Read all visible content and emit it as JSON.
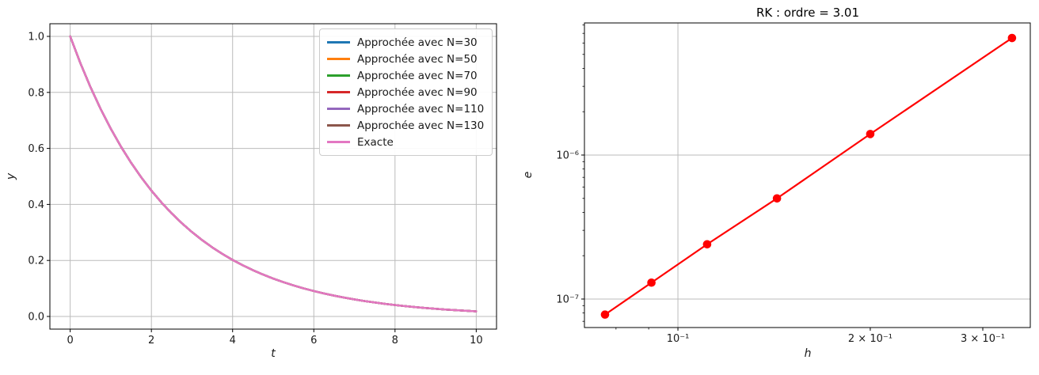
{
  "chart_data": [
    {
      "id": "solution-plot",
      "type": "line",
      "title": "",
      "xlabel": "t",
      "ylabel": "y",
      "xlim": [
        -0.5,
        10.5
      ],
      "ylim": [
        -0.0452,
        1.0452
      ],
      "grid": true,
      "legend_position": "upper right",
      "xticks": [
        {
          "v": 0,
          "label": "0",
          "grid": true
        },
        {
          "v": 2,
          "label": "2",
          "grid": true
        },
        {
          "v": 4,
          "label": "4",
          "grid": true
        },
        {
          "v": 6,
          "label": "6",
          "grid": true
        },
        {
          "v": 8,
          "label": "8",
          "grid": true
        },
        {
          "v": 10,
          "label": "10",
          "grid": true
        }
      ],
      "yticks": [
        {
          "v": 0.0,
          "label": "0.0",
          "grid": true
        },
        {
          "v": 0.2,
          "label": "0.2",
          "grid": true
        },
        {
          "v": 0.4,
          "label": "0.4",
          "grid": true
        },
        {
          "v": 0.6,
          "label": "0.6",
          "grid": true
        },
        {
          "v": 0.8,
          "label": "0.8",
          "grid": true
        },
        {
          "v": 1.0,
          "label": "1.0",
          "grid": true
        }
      ],
      "x": [
        0,
        0.25,
        0.5,
        0.75,
        1,
        1.25,
        1.5,
        1.75,
        2,
        2.25,
        2.5,
        2.75,
        3,
        3.25,
        3.5,
        3.75,
        4,
        4.25,
        4.5,
        4.75,
        5,
        5.25,
        5.5,
        5.75,
        6,
        6.25,
        6.5,
        6.75,
        7,
        7.25,
        7.5,
        7.75,
        8,
        8.25,
        8.5,
        8.75,
        9,
        9.25,
        9.5,
        9.75,
        10
      ],
      "exact_y": [
        1.0,
        0.9048,
        0.8187,
        0.7408,
        0.6703,
        0.6065,
        0.5488,
        0.4966,
        0.4493,
        0.4066,
        0.3679,
        0.3329,
        0.3012,
        0.2725,
        0.2466,
        0.2231,
        0.2019,
        0.1827,
        0.1653,
        0.1496,
        0.1353,
        0.1225,
        0.1108,
        0.1003,
        0.0907,
        0.0821,
        0.0743,
        0.0672,
        0.0608,
        0.055,
        0.0498,
        0.045,
        0.0408,
        0.0369,
        0.0334,
        0.0302,
        0.0273,
        0.0247,
        0.0224,
        0.0202,
        0.0183
      ],
      "series": [
        {
          "name": "Approchée avec N=30",
          "color": "#1f77b4",
          "coincides_with_exact": true
        },
        {
          "name": "Approchée avec N=50",
          "color": "#ff7f0e",
          "coincides_with_exact": true
        },
        {
          "name": "Approchée avec N=70",
          "color": "#2ca02c",
          "coincides_with_exact": true
        },
        {
          "name": "Approchée avec N=90",
          "color": "#d62728",
          "coincides_with_exact": true
        },
        {
          "name": "Approchée avec N=110",
          "color": "#9467bd",
          "coincides_with_exact": true
        },
        {
          "name": "Approchée avec N=130",
          "color": "#8c564b",
          "coincides_with_exact": true
        },
        {
          "name": "Exacte",
          "color": "#e377c2",
          "coincides_with_exact": true
        }
      ]
    },
    {
      "id": "convergence-plot",
      "type": "line",
      "title": "RK : ordre = 3.01",
      "xlabel": "h",
      "ylabel": "e",
      "xscale": "log",
      "yscale": "log",
      "xlim": [
        0.0714,
        0.356
      ],
      "ylim": [
        6.34e-08,
        8.27e-06
      ],
      "grid": true,
      "color": "#ff0000",
      "marker": "o",
      "x": [
        0.0769,
        0.0909,
        0.1111,
        0.1429,
        0.2,
        0.3333
      ],
      "y": [
        7.8e-08,
        1.3e-07,
        2.4e-07,
        5e-07,
        1.4e-06,
        6.5e-06
      ],
      "xticks": [
        {
          "v": 0.1,
          "label": "10⁻¹",
          "grid": true
        },
        {
          "v": 0.2,
          "label": "2 × 10⁻¹",
          "grid": false
        },
        {
          "v": 0.3,
          "label": "3 × 10⁻¹",
          "grid": false
        }
      ],
      "xticks_minor": [
        0.08,
        0.09
      ],
      "yticks": [
        {
          "v": 1e-06,
          "label": "10⁻⁶",
          "grid": true
        },
        {
          "v": 1e-07,
          "label": "10⁻⁷",
          "grid": true
        }
      ],
      "yticks_minor": [
        7e-08,
        8e-08,
        9e-08,
        2e-07,
        3e-07,
        4e-07,
        5e-07,
        6e-07,
        7e-07,
        8e-07,
        9e-07,
        2e-06,
        3e-06,
        4e-06,
        5e-06,
        6e-06,
        7e-06,
        8e-06
      ]
    }
  ]
}
